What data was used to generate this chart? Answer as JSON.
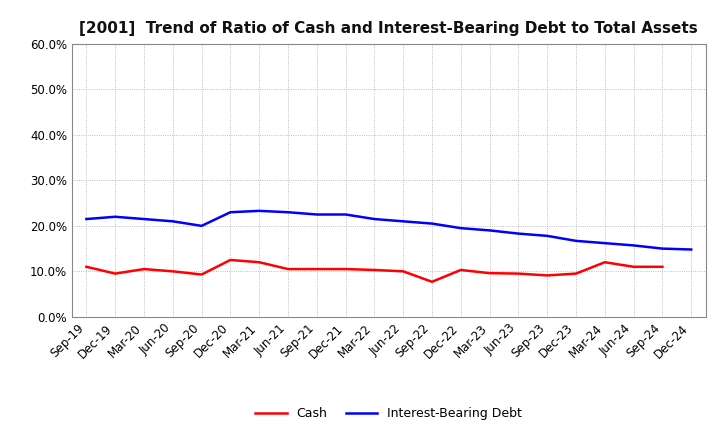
{
  "title": "[2001]  Trend of Ratio of Cash and Interest-Bearing Debt to Total Assets",
  "x_labels": [
    "Sep-19",
    "Dec-19",
    "Mar-20",
    "Jun-20",
    "Sep-20",
    "Dec-20",
    "Mar-21",
    "Jun-21",
    "Sep-21",
    "Dec-21",
    "Mar-22",
    "Jun-22",
    "Sep-22",
    "Dec-22",
    "Mar-23",
    "Jun-23",
    "Sep-23",
    "Dec-23",
    "Mar-24",
    "Jun-24",
    "Sep-24",
    "Dec-24"
  ],
  "cash": [
    0.11,
    0.095,
    0.105,
    0.1,
    0.093,
    0.125,
    0.12,
    0.105,
    0.105,
    0.105,
    0.103,
    0.1,
    0.077,
    0.103,
    0.096,
    0.095,
    0.091,
    0.095,
    0.12,
    0.11,
    0.11,
    null
  ],
  "debt": [
    0.215,
    0.22,
    0.215,
    0.21,
    0.2,
    0.23,
    0.233,
    0.23,
    0.225,
    0.225,
    0.215,
    0.21,
    0.205,
    0.195,
    0.19,
    0.183,
    0.178,
    0.167,
    0.162,
    0.157,
    0.15,
    0.148
  ],
  "cash_color": "#ff0000",
  "debt_color": "#0000ff",
  "background_color": "#ffffff",
  "ylim": [
    0.0,
    0.6
  ],
  "yticks": [
    0.0,
    0.1,
    0.2,
    0.3,
    0.4,
    0.5,
    0.6
  ],
  "legend_cash": "Cash",
  "legend_debt": "Interest-Bearing Debt",
  "line_width": 1.8,
  "title_fontsize": 11,
  "tick_fontsize": 8.5,
  "legend_fontsize": 9
}
